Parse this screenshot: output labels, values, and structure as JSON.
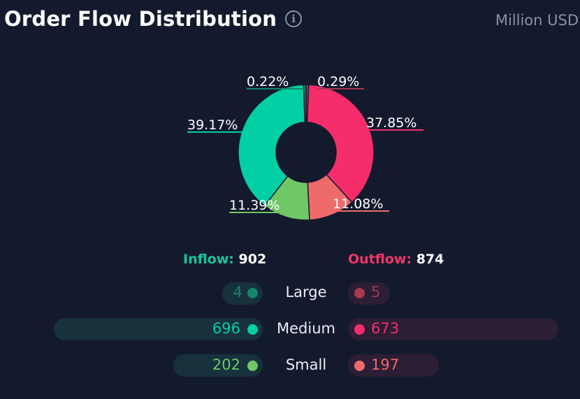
{
  "header": {
    "title": "Order Flow Distribution",
    "unit": "Million USD"
  },
  "colors": {
    "background": "#141a2e",
    "inflow": "#16c79a",
    "outflow": "#f0356a",
    "large_in": "#13866d",
    "large_out": "#a83950",
    "medium_in": "#03cfa5",
    "medium_out": "#f62d6b",
    "small_in": "#6fc765",
    "small_out": "#ef6b6b"
  },
  "summary": {
    "inflow_label": "Inflow:",
    "inflow_value": "902",
    "outflow_label": "Outflow:",
    "outflow_value": "874"
  },
  "rows": [
    {
      "label": "Large",
      "inflow": "4",
      "outflow": "5"
    },
    {
      "label": "Medium",
      "inflow": "696",
      "outflow": "673"
    },
    {
      "label": "Small",
      "inflow": "202",
      "outflow": "197"
    }
  ],
  "chart_data": {
    "type": "pie",
    "variant": "donut",
    "title": "Order Flow Distribution",
    "unit": "Million USD",
    "slices": [
      {
        "name": "Large Outflow",
        "value": 0.29,
        "label": "0.29%",
        "color": "#a83950"
      },
      {
        "name": "Medium Outflow",
        "value": 37.85,
        "label": "37.85%",
        "color": "#f62d6b"
      },
      {
        "name": "Small Outflow",
        "value": 11.08,
        "label": "11.08%",
        "color": "#ef6b6b"
      },
      {
        "name": "Small Inflow",
        "value": 11.39,
        "label": "11.39%",
        "color": "#6fc765"
      },
      {
        "name": "Medium Inflow",
        "value": 39.17,
        "label": "39.17%",
        "color": "#03cfa5"
      },
      {
        "name": "Large Inflow",
        "value": 0.22,
        "label": "0.22%",
        "color": "#13866d"
      }
    ]
  }
}
